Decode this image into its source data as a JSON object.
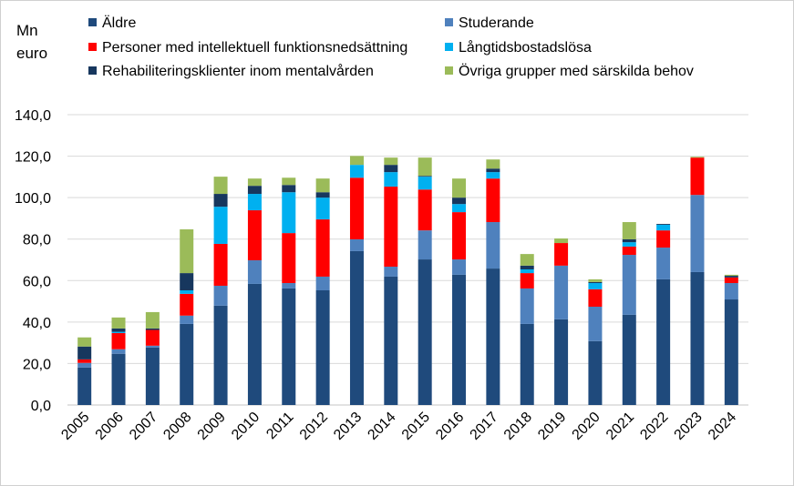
{
  "chart_data": {
    "type": "bar",
    "stacked": true,
    "title": "",
    "ylabel": "Mn euro",
    "xlabel": "",
    "ylim": [
      0,
      140
    ],
    "yticks": [
      "0,0",
      "20,0",
      "40,0",
      "60,0",
      "80,0",
      "100,0",
      "120,0",
      "140,0"
    ],
    "grid": true,
    "legend_position": "top",
    "categories": [
      "2005",
      "2006",
      "2007",
      "2008",
      "2009",
      "2010",
      "2011",
      "2012",
      "2013",
      "2014",
      "2015",
      "2016",
      "2017",
      "2018",
      "2019",
      "2020",
      "2021",
      "2022",
      "2023",
      "2024"
    ],
    "series": [
      {
        "name": "Äldre",
        "color": "#1F4A7C",
        "values": [
          18.1,
          24.7,
          27.7,
          39.1,
          47.9,
          58.4,
          56.2,
          55.3,
          74.2,
          61.9,
          70.2,
          62.8,
          65.8,
          39.1,
          41.3,
          30.8,
          43.5,
          60.6,
          64.1,
          50.9
        ]
      },
      {
        "name": "Studerande",
        "color": "#4F81BD",
        "values": [
          2.2,
          2.2,
          0.9,
          4.0,
          9.6,
          11.4,
          2.6,
          6.6,
          5.7,
          4.8,
          14.0,
          7.4,
          22.4,
          17.1,
          25.9,
          16.6,
          28.9,
          15.3,
          37.2,
          7.9
        ]
      },
      {
        "name": "Personer med intellektuell funktionsnedsättning",
        "color": "#FF0000",
        "values": [
          1.7,
          7.8,
          7.6,
          10.5,
          20.2,
          24.1,
          24.1,
          27.6,
          29.7,
          38.6,
          19.7,
          22.8,
          21.0,
          7.4,
          10.9,
          8.4,
          4.0,
          8.3,
          18.0,
          2.7
        ]
      },
      {
        "name": "Långtidsbostadslösa",
        "color": "#00B0F0",
        "values": [
          0,
          0.6,
          0,
          1.7,
          17.9,
          7.9,
          19.7,
          10.5,
          6.2,
          7.0,
          6.2,
          3.9,
          3.1,
          1.8,
          0,
          3.0,
          2.1,
          2.7,
          0,
          0
        ]
      },
      {
        "name": "Rehabiliteringsklienter inom mentalvården",
        "color": "#17375E",
        "values": [
          6.2,
          1.6,
          0.7,
          8.3,
          6.2,
          3.9,
          3.5,
          2.6,
          0,
          3.5,
          0.4,
          3.1,
          1.7,
          1.8,
          0,
          0.5,
          1.4,
          0.4,
          0,
          0.8
        ]
      },
      {
        "name": "Övriga grupper med särskilda behov",
        "color": "#9BBB59",
        "values": [
          4.4,
          5.3,
          7.9,
          21.1,
          8.3,
          3.5,
          3.5,
          6.6,
          4.3,
          3.5,
          8.8,
          9.2,
          4.4,
          5.6,
          2.2,
          1.3,
          8.3,
          0,
          0.4,
          0.5
        ]
      }
    ]
  }
}
